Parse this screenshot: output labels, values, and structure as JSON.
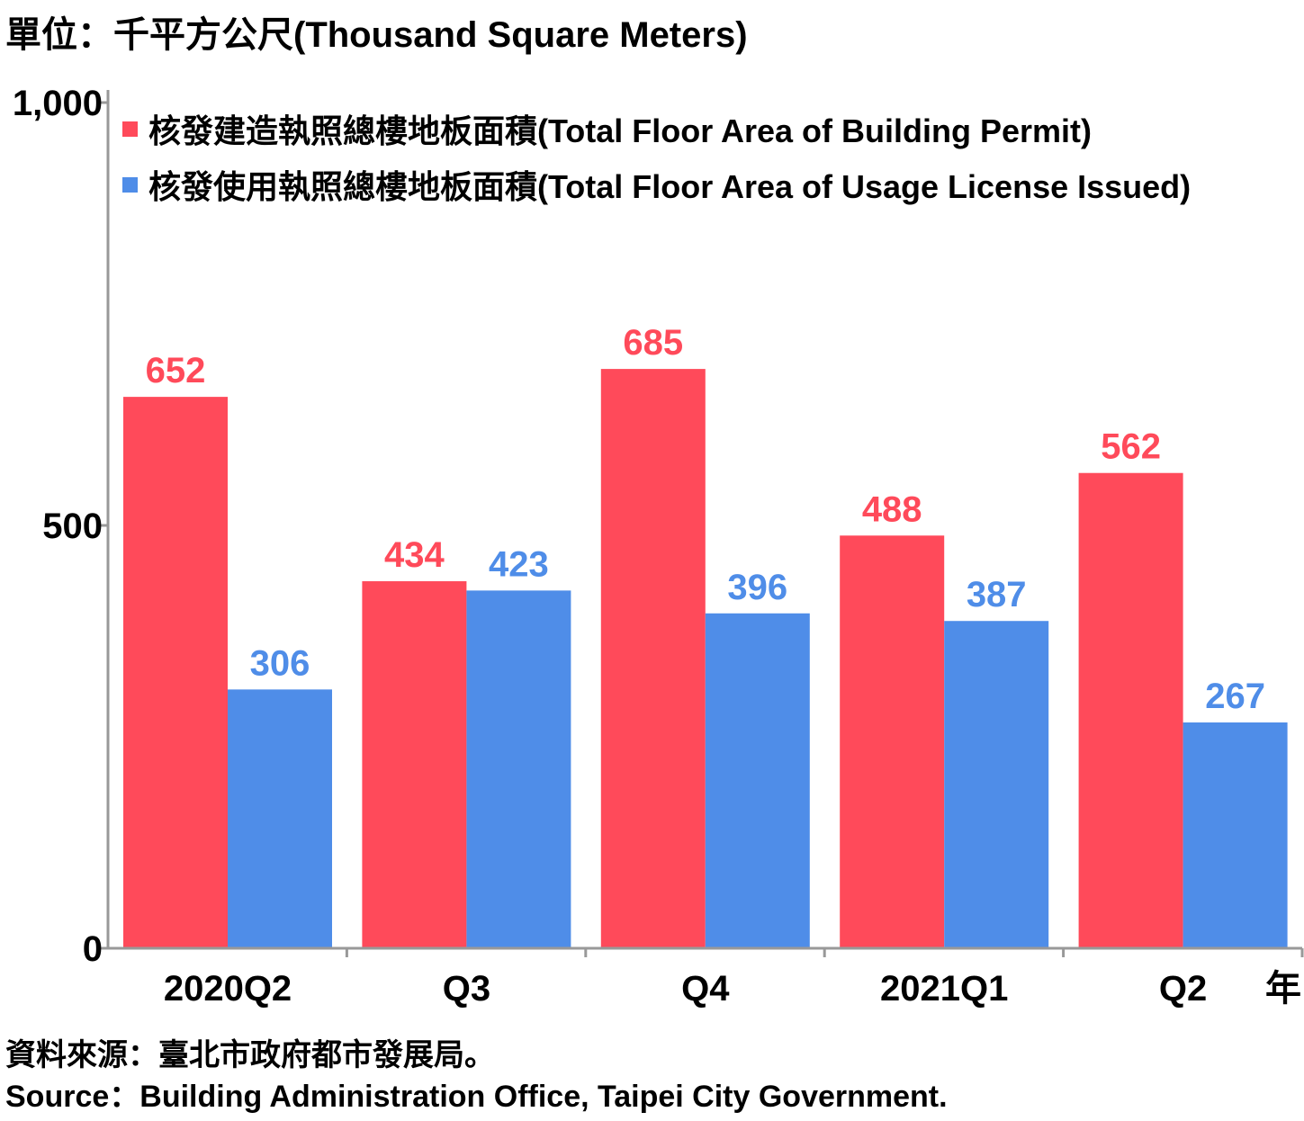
{
  "unit_label": "單位：千平方公尺(Thousand Square Meters)",
  "year_suffix": "年",
  "source": {
    "line_zh": "資料來源：臺北市政府都市發展局。",
    "line_en": "Source：Building Administration Office, Taipei City Government."
  },
  "colors": {
    "permit": "#ff4a5a",
    "usage": "#4f8de8",
    "axis": "#999999"
  },
  "chart_data": {
    "type": "bar",
    "categories": [
      "2020Q2",
      "Q3",
      "Q4",
      "2021Q1",
      "Q2"
    ],
    "series": [
      {
        "name": "核發建造執照總樓地板面積(Total Floor Area of Building Permit)",
        "values": [
          652,
          434,
          685,
          488,
          562
        ]
      },
      {
        "name": "核發使用執照總樓地板面積(Total Floor Area of Usage License Issued)",
        "values": [
          306,
          423,
          396,
          387,
          267
        ]
      }
    ],
    "ylim": [
      0,
      1000
    ],
    "yticks": [
      0,
      500,
      1000
    ],
    "ytick_labels": [
      "0",
      "500",
      "1,000"
    ],
    "legend_position": "top-right",
    "grid": false
  }
}
